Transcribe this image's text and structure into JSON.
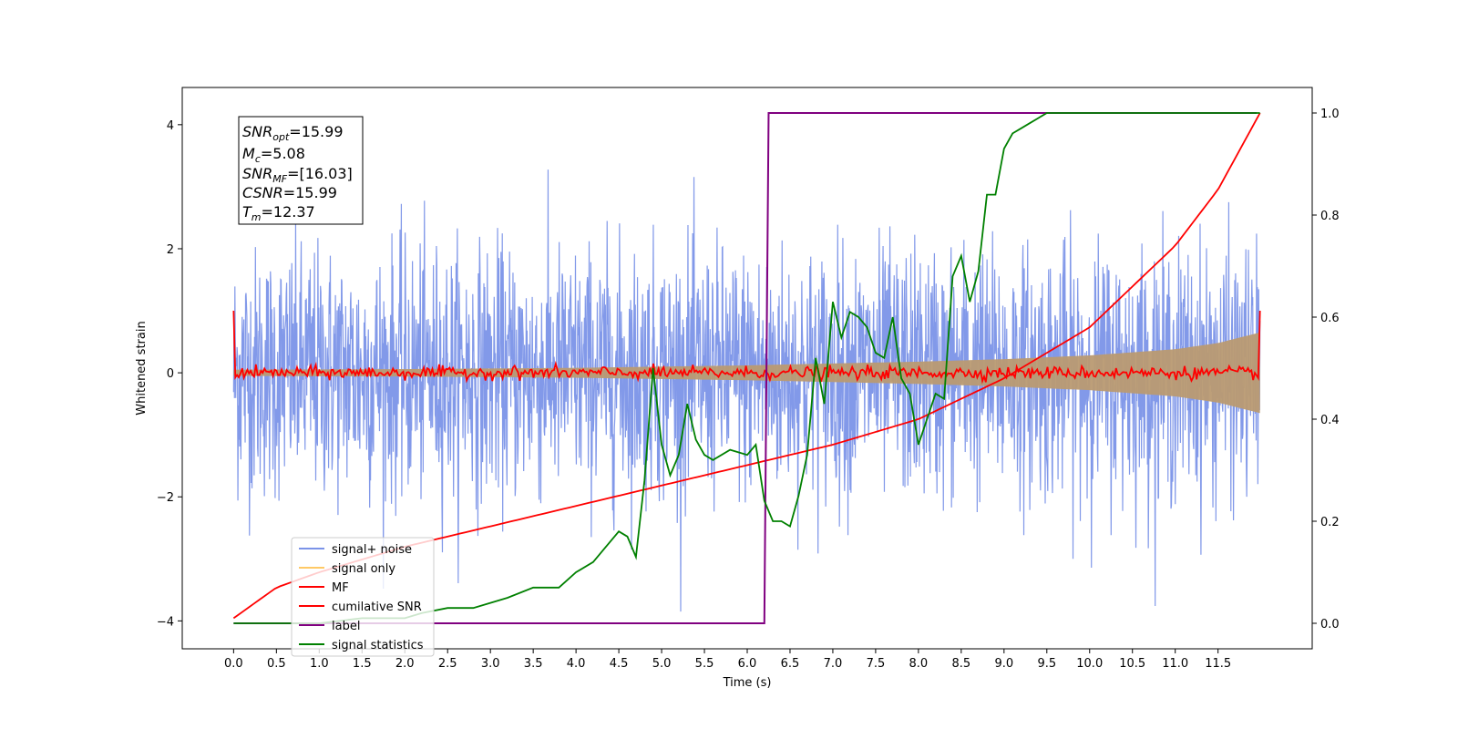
{
  "chart_data": {
    "type": "line",
    "xlabel": "Time (s)",
    "ylabel": "Whitened strain",
    "xlim": [
      -0.6,
      12.6
    ],
    "ylim": [
      -4.45,
      4.6
    ],
    "y2lim": [
      -0.05,
      1.05
    ],
    "x_ticks": [
      "0.0",
      "0.5",
      "1.0",
      "1.5",
      "2.0",
      "2.5",
      "3.0",
      "3.5",
      "4.0",
      "4.5",
      "5.0",
      "5.5",
      "6.0",
      "6.5",
      "7.0",
      "7.5",
      "8.0",
      "8.5",
      "9.0",
      "9.5",
      "10.0",
      "10.5",
      "11.0",
      "11.5"
    ],
    "y_ticks": [
      "−4",
      "−2",
      "0",
      "2",
      "4"
    ],
    "y2_ticks": [
      "0.0",
      "0.2",
      "0.4",
      "0.6",
      "0.8",
      "1.0"
    ],
    "annotation": {
      "line1_name": "SNR",
      "line1_sub": "opt",
      "line1_val": "=15.99",
      "line2_name": "M",
      "line2_sub": "c",
      "line2_val": "=5.08",
      "line3_name": "SNR",
      "line3_sub": "MF",
      "line3_val": "=[16.03]",
      "line4_name": "CSNR",
      "line4_val": "=15.99",
      "line5_name": "T",
      "line5_sub": "m",
      "line5_val": "=12.37"
    },
    "legend": {
      "placement": "lower-left",
      "entries": [
        {
          "label": "signal+ noise",
          "color": "#7b93e8"
        },
        {
          "label": "signal only",
          "color": "#ffc966"
        },
        {
          "label": "MF",
          "color": "#ff0000"
        },
        {
          "label": "cumilative SNR",
          "color": "#ff0000"
        },
        {
          "label": "label",
          "color": "#800080"
        },
        {
          "label": "signal statistics",
          "color": "#008000"
        }
      ]
    },
    "series": [
      {
        "name": "signal+ noise",
        "axis": "left",
        "color": "#7b93e8",
        "t_range": [
          0,
          11.99
        ],
        "amplitude_sd": 1.0
      },
      {
        "name": "signal only",
        "axis": "left",
        "color": "#b99a72",
        "envelope": {
          "t": [
            0,
            2,
            4,
            6,
            8,
            9,
            10,
            11,
            11.5,
            11.99
          ],
          "amp": [
            0.05,
            0.06,
            0.08,
            0.12,
            0.18,
            0.22,
            0.28,
            0.38,
            0.48,
            0.65
          ]
        }
      },
      {
        "name": "MF",
        "axis": "left",
        "color": "#ff0000",
        "t_range": [
          0,
          11.99
        ],
        "start": 1.0,
        "end": 1.0,
        "noise_sd": 0.05
      },
      {
        "name": "cumilative SNR",
        "axis": "right",
        "color": "#ff0000",
        "x": [
          0,
          0.5,
          1,
          2,
          3,
          4,
          5,
          6,
          7,
          8,
          8.5,
          9,
          9.5,
          10,
          10.5,
          11,
          11.5,
          11.99
        ],
        "y": [
          0.01,
          0.07,
          0.1,
          0.15,
          0.19,
          0.23,
          0.27,
          0.31,
          0.35,
          0.4,
          0.44,
          0.48,
          0.53,
          0.58,
          0.66,
          0.74,
          0.85,
          1.0
        ]
      },
      {
        "name": "label",
        "axis": "right",
        "color": "#800080",
        "x": [
          0,
          6.2,
          6.25,
          11.95
        ],
        "y": [
          0,
          0,
          1,
          1
        ]
      },
      {
        "name": "signal statistics",
        "axis": "right",
        "color": "#008000",
        "x": [
          0,
          0.5,
          1,
          1.5,
          2,
          2.2,
          2.5,
          2.8,
          3.0,
          3.2,
          3.5,
          3.8,
          4.0,
          4.2,
          4.3,
          4.5,
          4.6,
          4.7,
          4.8,
          4.9,
          5.0,
          5.1,
          5.2,
          5.3,
          5.4,
          5.5,
          5.6,
          5.8,
          6.0,
          6.1,
          6.2,
          6.3,
          6.4,
          6.5,
          6.6,
          6.7,
          6.8,
          6.9,
          7.0,
          7.1,
          7.2,
          7.3,
          7.4,
          7.5,
          7.6,
          7.7,
          7.8,
          7.9,
          8.0,
          8.1,
          8.2,
          8.3,
          8.4,
          8.5,
          8.6,
          8.7,
          8.8,
          8.9,
          9.0,
          9.1,
          9.2,
          9.3,
          9.4,
          9.5,
          10,
          11,
          11.99
        ],
        "y": [
          0,
          0,
          0.0,
          0.01,
          0.01,
          0.02,
          0.03,
          0.03,
          0.04,
          0.05,
          0.07,
          0.07,
          0.1,
          0.12,
          0.14,
          0.18,
          0.17,
          0.13,
          0.28,
          0.5,
          0.35,
          0.29,
          0.33,
          0.43,
          0.36,
          0.33,
          0.32,
          0.34,
          0.33,
          0.35,
          0.24,
          0.2,
          0.2,
          0.19,
          0.25,
          0.33,
          0.52,
          0.43,
          0.63,
          0.56,
          0.61,
          0.6,
          0.58,
          0.53,
          0.52,
          0.6,
          0.48,
          0.45,
          0.35,
          0.4,
          0.45,
          0.44,
          0.68,
          0.72,
          0.63,
          0.69,
          0.84,
          0.84,
          0.93,
          0.96,
          0.97,
          0.98,
          0.99,
          1.0,
          1.0,
          1.0,
          1.0
        ]
      }
    ]
  }
}
